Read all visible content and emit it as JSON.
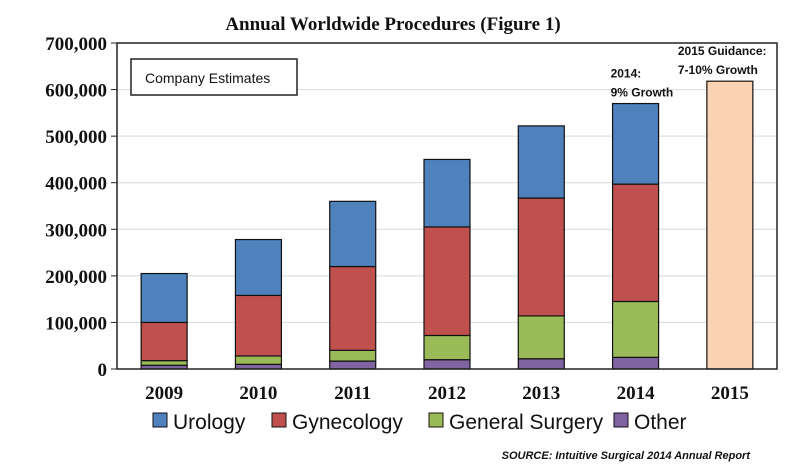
{
  "chart_data": {
    "type": "bar",
    "stacked": true,
    "title": "Annual Worldwide Procedures (Figure 1)",
    "categories": [
      "2009",
      "2010",
      "2011",
      "2012",
      "2013",
      "2014",
      "2015"
    ],
    "series": [
      {
        "name": "Other",
        "color": "#8064A2",
        "values": [
          8000,
          10000,
          17000,
          20000,
          22000,
          25000,
          null
        ]
      },
      {
        "name": "General Surgery",
        "color": "#9BBB59",
        "values": [
          10000,
          18000,
          23000,
          52000,
          92000,
          120000,
          null
        ]
      },
      {
        "name": "Gynecology",
        "color": "#C0504D",
        "values": [
          82000,
          130000,
          180000,
          233000,
          253000,
          252000,
          null
        ]
      },
      {
        "name": "Urology",
        "color": "#4F81BD",
        "values": [
          105000,
          120000,
          140000,
          145000,
          155000,
          173000,
          null
        ]
      },
      {
        "name": "",
        "color": "#FAD2B4",
        "values": [
          null,
          null,
          null,
          null,
          null,
          null,
          618000
        ]
      }
    ],
    "ylim": [
      0,
      700000
    ],
    "yticks": [
      "0",
      "100,000",
      "200,000",
      "300,000",
      "400,000",
      "500,000",
      "600,000",
      "700,000"
    ],
    "grid": true,
    "legend": {
      "position": "bottom",
      "entries": [
        "Urology",
        "Gynecology",
        "General Surgery",
        "Other"
      ]
    },
    "box_label": "Company Estimates",
    "annotations": [
      {
        "category": "2014",
        "lines": [
          "2014:",
          "9% Growth"
        ]
      },
      {
        "category": "2015",
        "lines": [
          "2015 Guidance:",
          "7-10% Growth"
        ]
      }
    ],
    "source": "SOURCE: Intuitive Surgical 2014 Annual Report"
  }
}
